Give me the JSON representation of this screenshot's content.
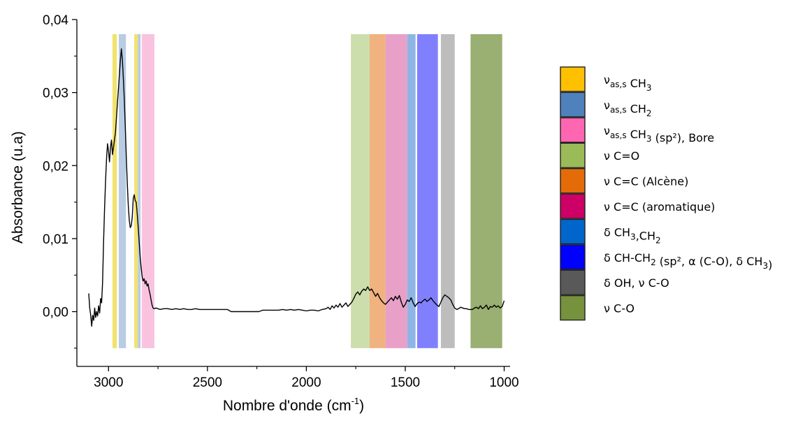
{
  "chart_data": {
    "type": "line",
    "xlabel": "Nombre d'onde (cm",
    "xlabel_sup": "-1",
    "xlabel_close": ")",
    "ylabel": "Absorbance (u.a)",
    "xlim": [
      3160,
      970
    ],
    "ylim": [
      -0.0075,
      0.04
    ],
    "x_ticks": [
      3000,
      2500,
      2000,
      1500,
      1000
    ],
    "x_tick_labels": [
      "3000",
      "2500",
      "2000",
      "1500",
      "1000"
    ],
    "y_ticks": [
      0.0,
      0.01,
      0.02,
      0.03,
      0.04
    ],
    "y_tick_labels": [
      "0,00",
      "0,01",
      "0,02",
      "0,03",
      "0,04"
    ],
    "bands": [
      {
        "from": 2980,
        "to": 2958,
        "color": "#F2E26E"
      },
      {
        "from": 2948,
        "to": 2912,
        "color": "#B8CCE4"
      },
      {
        "from": 2870,
        "to": 2852,
        "color": "#F2E26E"
      },
      {
        "from": 2852,
        "to": 2838,
        "color": "#B8CCE4"
      },
      {
        "from": 2832,
        "to": 2768,
        "color": "#F9C3E0"
      },
      {
        "from": 1775,
        "to": 1680,
        "color": "#CCDEAB"
      },
      {
        "from": 1680,
        "to": 1600,
        "color": "#F0B27E"
      },
      {
        "from": 1600,
        "to": 1490,
        "color": "#E8A0C8"
      },
      {
        "from": 1490,
        "to": 1448,
        "color": "#8FB5E5"
      },
      {
        "from": 1440,
        "to": 1335,
        "color": "#8080FF"
      },
      {
        "from": 1320,
        "to": 1250,
        "color": "#BDBDBD"
      },
      {
        "from": 1170,
        "to": 1010,
        "color": "#9AAF72"
      }
    ],
    "series": [
      {
        "x": [
          3100,
          3095,
          3090,
          3085,
          3080,
          3075,
          3070,
          3065,
          3060,
          3055,
          3050,
          3045,
          3040,
          3035,
          3030,
          3025,
          3020,
          3015,
          3010,
          3005,
          3000,
          2995,
          2990,
          2985,
          2980,
          2975,
          2970,
          2965,
          2960,
          2955,
          2950,
          2945,
          2940,
          2935,
          2930,
          2925,
          2920,
          2915,
          2910,
          2905,
          2900,
          2895,
          2890,
          2885,
          2880,
          2875,
          2870,
          2865,
          2860,
          2855,
          2850,
          2845,
          2840,
          2835,
          2830,
          2825,
          2820,
          2815,
          2810,
          2805,
          2800,
          2795,
          2790,
          2785,
          2780,
          2775,
          2770,
          2760,
          2740,
          2720,
          2700,
          2680,
          2660,
          2640,
          2620,
          2600,
          2580,
          2560,
          2540,
          2520,
          2500,
          2480,
          2460,
          2440,
          2420,
          2400,
          2380,
          2360,
          2340,
          2320,
          2300,
          2280,
          2260,
          2240,
          2220,
          2200,
          2180,
          2160,
          2140,
          2120,
          2100,
          2080,
          2060,
          2040,
          2020,
          2000,
          1980,
          1960,
          1940,
          1920,
          1900,
          1890,
          1880,
          1870,
          1860,
          1850,
          1840,
          1830,
          1820,
          1810,
          1800,
          1790,
          1780,
          1770,
          1760,
          1750,
          1740,
          1730,
          1720,
          1710,
          1700,
          1690,
          1680,
          1670,
          1660,
          1650,
          1640,
          1630,
          1620,
          1610,
          1600,
          1590,
          1580,
          1570,
          1560,
          1550,
          1540,
          1530,
          1520,
          1510,
          1500,
          1490,
          1480,
          1470,
          1460,
          1450,
          1440,
          1430,
          1420,
          1410,
          1400,
          1390,
          1380,
          1370,
          1360,
          1350,
          1340,
          1330,
          1320,
          1310,
          1300,
          1290,
          1280,
          1270,
          1260,
          1250,
          1240,
          1230,
          1220,
          1210,
          1200,
          1190,
          1180,
          1170,
          1160,
          1150,
          1140,
          1130,
          1120,
          1110,
          1100,
          1090,
          1080,
          1070,
          1060,
          1050,
          1040,
          1030,
          1020,
          1010,
          1000
        ],
        "y": [
          0.0025,
          0.0005,
          -0.0005,
          -0.002,
          -0.0005,
          -0.0012,
          0.0005,
          -0.0008,
          0.0,
          -0.0006,
          0.0008,
          -0.0002,
          0.0018,
          0.0012,
          0.004,
          0.0095,
          0.014,
          0.018,
          0.021,
          0.023,
          0.022,
          0.0205,
          0.0225,
          0.0235,
          0.0215,
          0.0225,
          0.0235,
          0.0245,
          0.0265,
          0.0285,
          0.0305,
          0.0325,
          0.0345,
          0.036,
          0.0345,
          0.032,
          0.029,
          0.025,
          0.021,
          0.0175,
          0.0145,
          0.0125,
          0.0115,
          0.0118,
          0.013,
          0.0155,
          0.016,
          0.0152,
          0.015,
          0.0135,
          0.0115,
          0.0095,
          0.0075,
          0.006,
          0.0048,
          0.0042,
          0.0045,
          0.0038,
          0.0042,
          0.0035,
          0.0038,
          0.003,
          0.0024,
          0.0016,
          0.0009,
          0.0005,
          0.0004,
          0.0005,
          0.0003,
          0.0004,
          0.0004,
          0.0003,
          0.0004,
          0.0003,
          0.0004,
          0.0003,
          0.0003,
          0.0004,
          0.0003,
          0.0003,
          0.0003,
          0.0003,
          0.0003,
          0.0003,
          0.0003,
          0.0003,
          0.0,
          0.0,
          0.0,
          0.0,
          0.0,
          0.0,
          0.0,
          0.0,
          0.0002,
          0.0002,
          0.0002,
          0.0002,
          0.0002,
          0.0003,
          0.0002,
          0.0003,
          0.0002,
          0.0003,
          0.0002,
          0.0001,
          0.0002,
          0.0002,
          0.0001,
          0.0003,
          0.0004,
          0.0006,
          0.0003,
          0.0008,
          0.0005,
          0.0009,
          0.0006,
          0.0011,
          0.0006,
          0.0009,
          0.0012,
          0.0007,
          0.001,
          0.0013,
          0.0018,
          0.0024,
          0.0027,
          0.0023,
          0.0028,
          0.0031,
          0.0029,
          0.0034,
          0.0029,
          0.0031,
          0.0026,
          0.0021,
          0.0025,
          0.0019,
          0.0015,
          0.0012,
          0.001,
          0.0013,
          0.0016,
          0.0019,
          0.0015,
          0.0021,
          0.0017,
          0.0022,
          0.0013,
          0.0006,
          0.001,
          0.0016,
          0.0014,
          0.0019,
          0.0012,
          0.0007,
          0.0011,
          0.0013,
          0.0012,
          0.0015,
          0.0017,
          0.0014,
          0.0016,
          0.0019,
          0.0015,
          0.0012,
          0.0009,
          0.0007,
          0.0013,
          0.0019,
          0.0023,
          0.0021,
          0.0019,
          0.0016,
          0.001,
          0.0005,
          0.0003,
          0.0004,
          0.0006,
          0.0005,
          0.0004,
          0.0004,
          0.0003,
          0.0003,
          0.0003,
          0.0005,
          0.0006,
          0.0004,
          0.0008,
          0.0004,
          0.0006,
          0.0009,
          0.0003,
          0.0007,
          0.0006,
          0.0009,
          0.0006,
          0.0008,
          0.0005,
          0.0007,
          0.0015
        ],
        "color": "#000000"
      }
    ],
    "legend": [
      {
        "color": "#FFC000",
        "label": "ν",
        "sub": "as,s",
        "rest": " CH",
        "sub2": "3",
        "tail": ""
      },
      {
        "color": "#4F81BD",
        "label": "ν",
        "sub": "as,s",
        "rest": " CH",
        "sub2": "2",
        "tail": ""
      },
      {
        "color": "#FF66B2",
        "label": "ν",
        "sub": "as,s",
        "rest": " CH",
        "sub2": "3",
        "tail": " (sp²), Bore"
      },
      {
        "color": "#9BBB59",
        "label": "ν  C=O",
        "sub": "",
        "rest": "",
        "sub2": "",
        "tail": ""
      },
      {
        "color": "#E36C09",
        "label": "ν  C=C (Alcène)",
        "sub": "",
        "rest": "",
        "sub2": "",
        "tail": ""
      },
      {
        "color": "#CC0066",
        "label": "ν  C=C (aromatique)",
        "sub": "",
        "rest": "",
        "sub2": "",
        "tail": ""
      },
      {
        "color": "#0066CC",
        "label": "δ CH",
        "sub": "3",
        "rest": ",CH",
        "sub2": "2",
        "tail": ""
      },
      {
        "color": "#0000FF",
        "label": "δ CH-CH",
        "sub": "2",
        "rest": " (sp², α (C-O), δ CH",
        "sub2": "3",
        "tail": ")"
      },
      {
        "color": "#595959",
        "label": "δ OH, ν C-O",
        "sub": "",
        "rest": "",
        "sub2": "",
        "tail": ""
      },
      {
        "color": "#76923C",
        "label": "ν  C-O",
        "sub": "",
        "rest": "",
        "sub2": "",
        "tail": ""
      }
    ]
  }
}
